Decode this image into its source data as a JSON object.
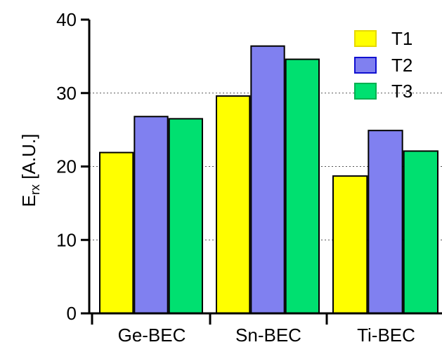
{
  "chart_data": {
    "type": "bar",
    "categories": [
      "Ge-BEC",
      "Sn-BEC",
      "Ti-BEC"
    ],
    "series": [
      {
        "name": "T1",
        "values": [
          21.9,
          29.6,
          18.7
        ],
        "color": "#ffff00",
        "stroke": "#e6d800"
      },
      {
        "name": "T2",
        "values": [
          26.8,
          36.4,
          24.9
        ],
        "color": "#8080f0",
        "stroke": "#1010d0"
      },
      {
        "name": "T3",
        "values": [
          26.5,
          34.6,
          22.1
        ],
        "color": "#00e070",
        "stroke": "#00b050"
      }
    ],
    "ylabel_main": "E",
    "ylabel_sub": "rx",
    "ylabel_rest": " [A.U.]",
    "ylim": [
      0,
      40
    ],
    "yticks": [
      "0",
      "10",
      "20",
      "30",
      "40"
    ],
    "grid": "dotted horizontal",
    "legend": "top-right"
  }
}
